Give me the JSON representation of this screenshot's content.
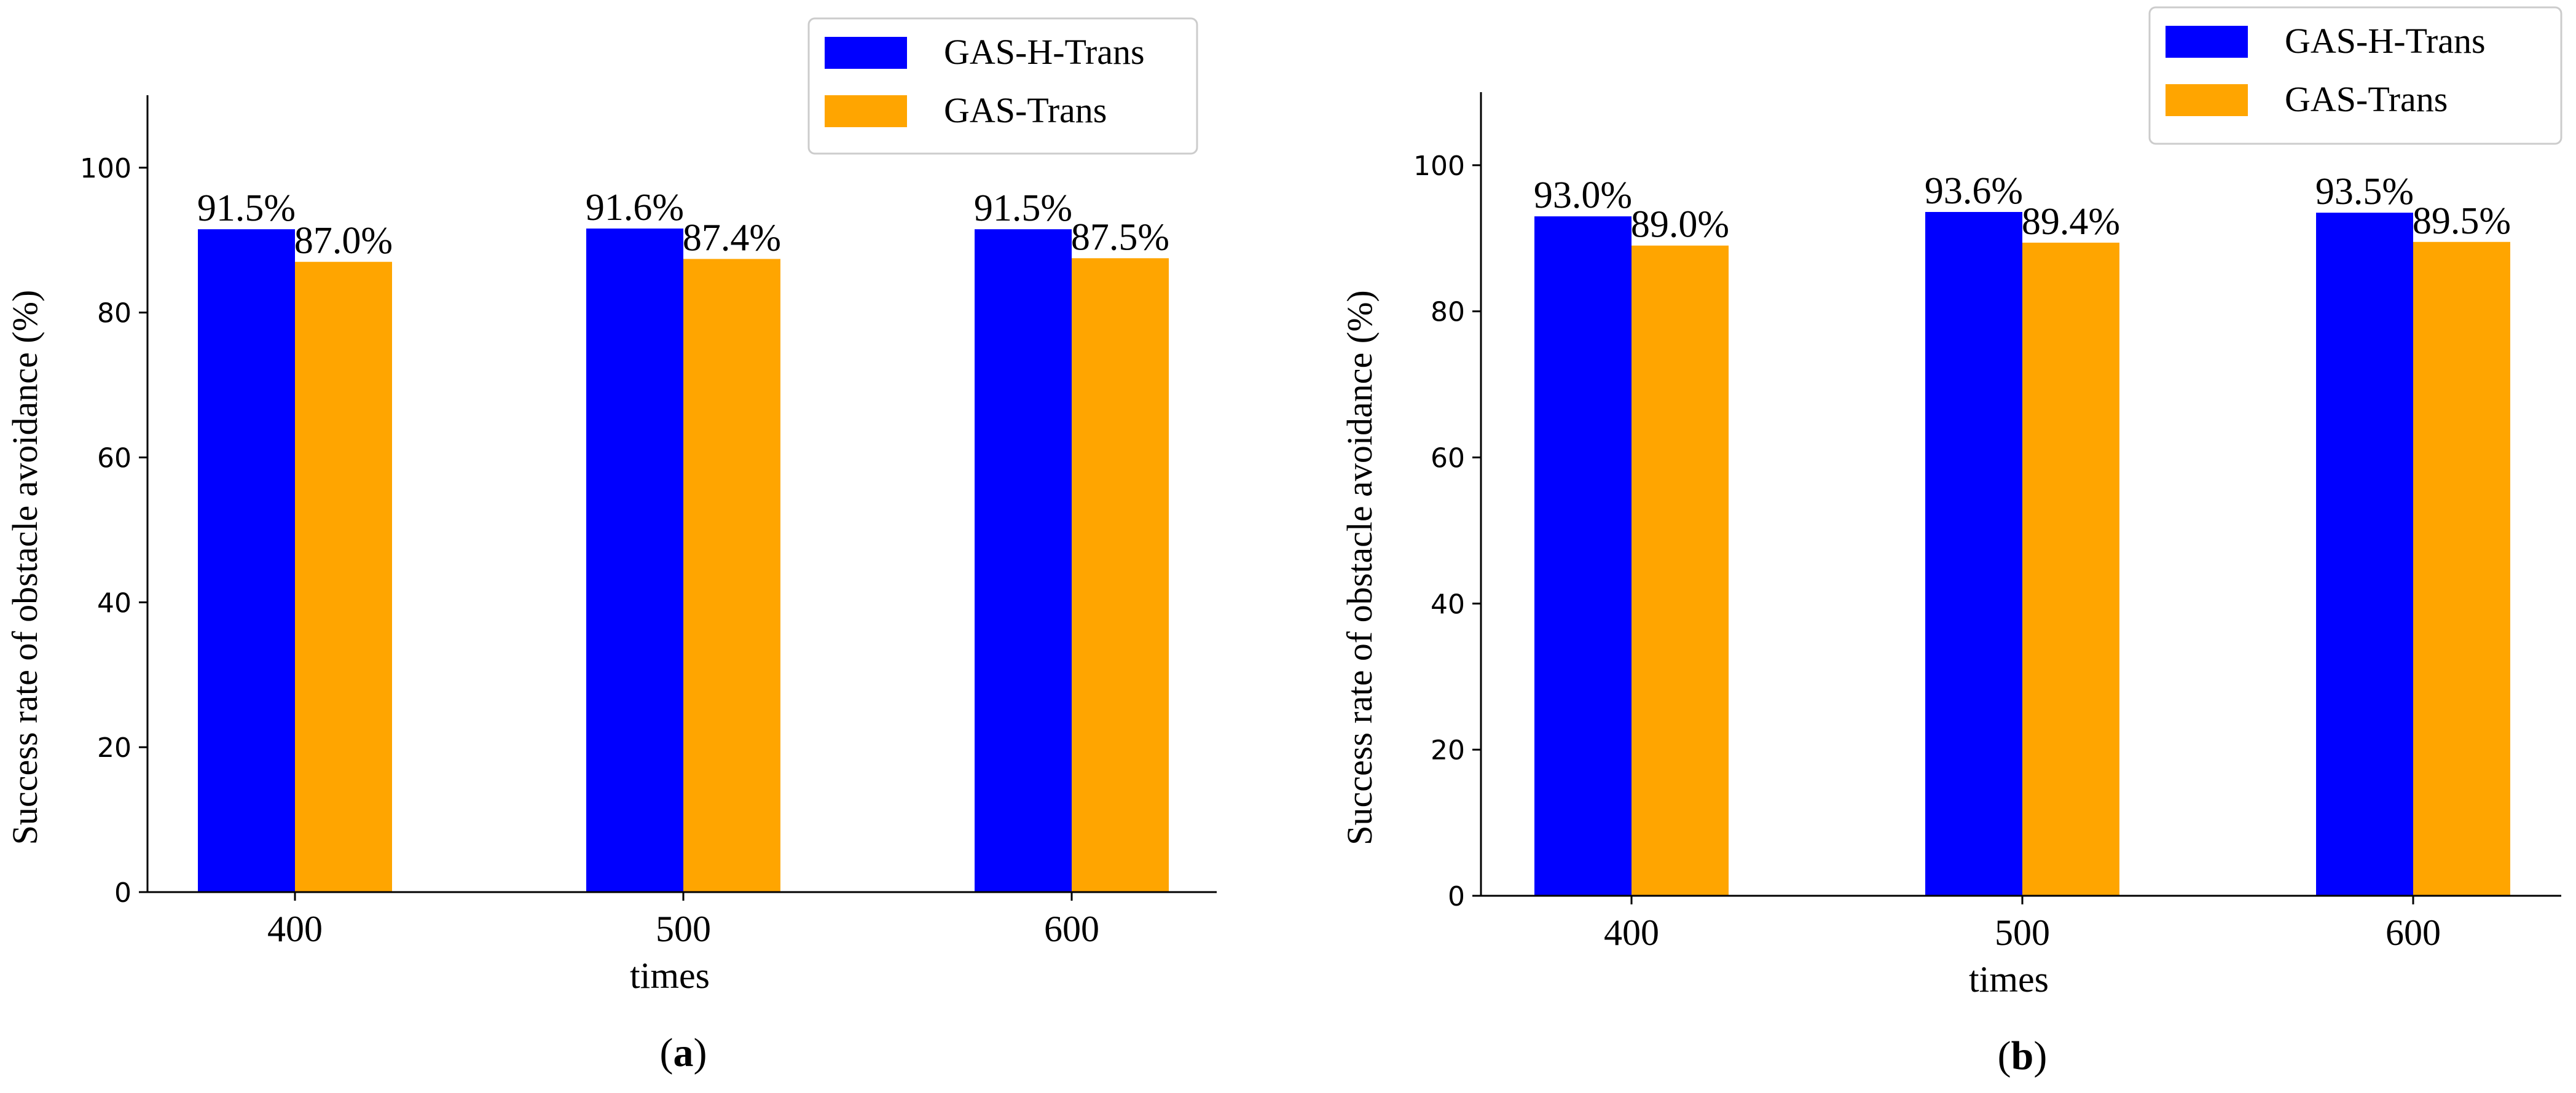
{
  "chart_data": [
    {
      "type": "bar",
      "panel_label": "a",
      "categories": [
        "400",
        "500",
        "600"
      ],
      "series": [
        {
          "name": "GAS-H-Trans",
          "values": [
            91.5,
            91.6,
            91.5
          ],
          "labels": [
            "91.5%",
            "91.6%",
            "91.5%"
          ],
          "color": "#0000ff"
        },
        {
          "name": "GAS-Trans",
          "values": [
            87.0,
            87.4,
            87.5
          ],
          "labels": [
            "87.0%",
            "87.4%",
            "87.5%"
          ],
          "color": "#ffa500"
        }
      ],
      "xlabel": "times",
      "ylabel": "Success rate of obstacle avoidance (%)",
      "ylim": [
        0,
        110
      ],
      "yticks": [
        0,
        20,
        40,
        60,
        80,
        100
      ],
      "ytick_labels": [
        "0",
        "20",
        "40",
        "60",
        "80",
        "100"
      ],
      "legend": "top-right",
      "grid": false
    },
    {
      "type": "bar",
      "panel_label": "b",
      "categories": [
        "400",
        "500",
        "600"
      ],
      "series": [
        {
          "name": "GAS-H-Trans",
          "values": [
            93.0,
            93.6,
            93.5
          ],
          "labels": [
            "93.0%",
            "93.6%",
            "93.5%"
          ],
          "color": "#0000ff"
        },
        {
          "name": "GAS-Trans",
          "values": [
            89.0,
            89.4,
            89.5
          ],
          "labels": [
            "89.0%",
            "89.4%",
            "89.5%"
          ],
          "color": "#ffa500"
        }
      ],
      "xlabel": "times",
      "ylabel": "Success rate of obstacle avoidance (%)",
      "ylim": [
        0,
        110
      ],
      "yticks": [
        0,
        20,
        40,
        60,
        80,
        100
      ],
      "ytick_labels": [
        "0",
        "20",
        "40",
        "60",
        "80",
        "100"
      ],
      "legend": "top-right",
      "grid": false
    }
  ]
}
